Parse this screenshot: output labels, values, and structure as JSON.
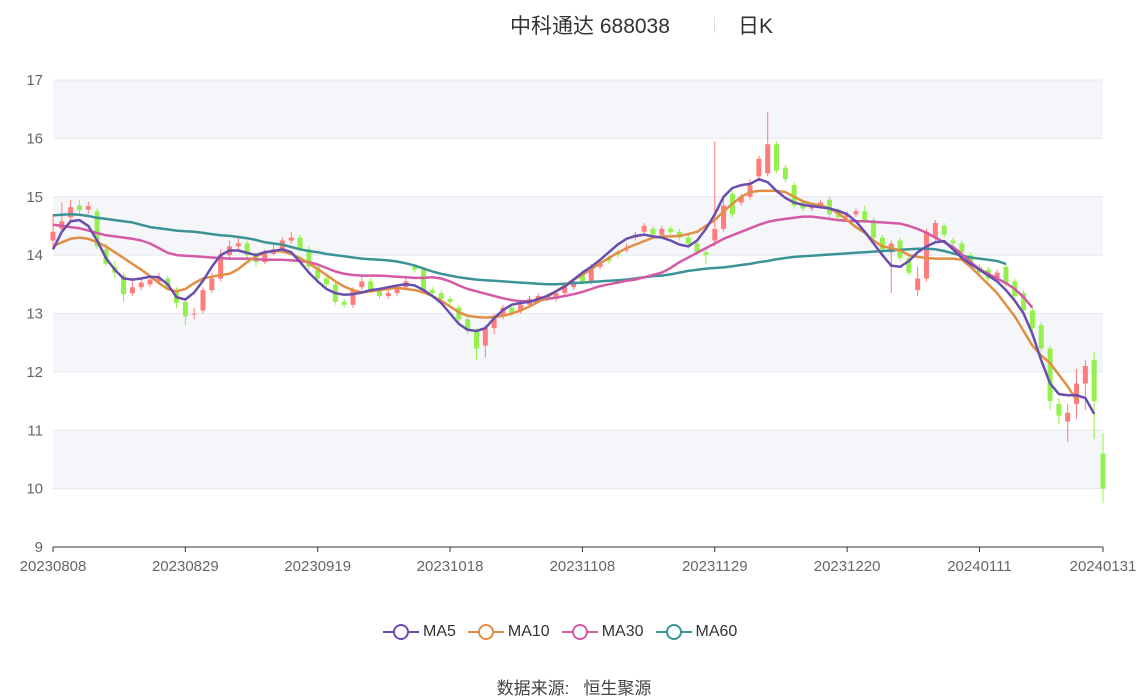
{
  "title": {
    "main": "中科通达 688038",
    "period": "日K"
  },
  "source": {
    "label": "数据来源:",
    "value": "恒生聚源"
  },
  "colors": {
    "up": "#ff7c7c",
    "down": "#94f04c",
    "grid": "#e3e8f0",
    "band": "#f5f6fa",
    "axis": "#333333",
    "ma5": "#6a4eae",
    "ma10": "#e08f45",
    "ma30": "#d55aa6",
    "ma60": "#3b9396"
  },
  "chart_data": {
    "type": "candlestick",
    "ylim": [
      9,
      17
    ],
    "yticks": [
      9,
      10,
      11,
      12,
      13,
      14,
      15,
      16,
      17
    ],
    "x_tick_labels": [
      "20230808",
      "20230829",
      "20230919",
      "20231018",
      "20231108",
      "20231129",
      "20231220",
      "20240111",
      "20240131"
    ],
    "x_tick_indices": [
      0,
      15,
      30,
      45,
      60,
      75,
      90,
      105,
      119
    ],
    "legend": [
      {
        "name": "MA5",
        "color": "#6a4eae"
      },
      {
        "name": "MA10",
        "color": "#e08f45"
      },
      {
        "name": "MA30",
        "color": "#d55aa6"
      },
      {
        "name": "MA60",
        "color": "#3b9396"
      }
    ],
    "close": [
      14.4,
      14.58,
      14.82,
      14.77,
      14.84,
      14.15,
      13.85,
      13.7,
      13.33,
      13.45,
      13.53,
      13.58,
      13.6,
      13.45,
      13.18,
      12.95,
      13.0,
      13.4,
      13.6,
      14.0,
      14.15,
      14.2,
      14.0,
      13.88,
      14.02,
      14.1,
      14.25,
      14.3,
      14.1,
      13.8,
      13.6,
      13.5,
      13.2,
      13.15,
      13.4,
      13.55,
      13.4,
      13.3,
      13.35,
      13.45,
      13.55,
      13.75,
      13.4,
      13.35,
      13.25,
      13.2,
      12.9,
      12.7,
      12.4,
      12.75,
      12.95,
      13.1,
      13.0,
      13.15,
      13.25,
      13.3,
      13.25,
      13.35,
      13.45,
      13.55,
      13.55,
      13.8,
      13.85,
      13.9,
      14.0,
      14.1,
      14.35,
      14.5,
      14.35,
      14.45,
      14.4,
      14.3,
      14.2,
      14.05,
      14.0,
      14.45,
      14.85,
      14.7,
      15.0,
      15.2,
      15.65,
      15.9,
      15.45,
      15.3,
      14.85,
      14.8,
      14.85,
      14.9,
      14.7,
      14.65,
      14.7,
      14.75,
      14.6,
      14.3,
      14.1,
      14.2,
      13.95,
      13.7,
      13.6,
      14.4,
      14.55,
      14.35,
      14.2,
      14.05,
      13.85,
      13.7,
      13.6,
      13.7,
      13.5,
      13.3,
      13.05,
      12.75,
      12.4,
      11.5,
      11.25,
      11.3,
      11.8,
      12.1,
      11.5,
      10.0
    ],
    "open": [
      14.25,
      14.45,
      14.65,
      14.85,
      14.78,
      14.75,
      14.1,
      13.8,
      13.65,
      13.35,
      13.45,
      13.5,
      13.55,
      13.6,
      13.4,
      13.2,
      13.0,
      13.05,
      13.4,
      13.6,
      14.0,
      14.15,
      14.2,
      14.0,
      13.88,
      14.02,
      14.1,
      14.25,
      14.3,
      14.1,
      13.8,
      13.6,
      13.5,
      13.2,
      13.15,
      13.45,
      13.55,
      13.4,
      13.3,
      13.35,
      13.45,
      13.8,
      13.75,
      13.4,
      13.35,
      13.25,
      13.1,
      12.9,
      12.7,
      12.45,
      12.75,
      12.95,
      13.1,
      13.05,
      13.15,
      13.25,
      13.3,
      13.25,
      13.35,
      13.45,
      13.65,
      13.55,
      13.8,
      13.95,
      14.05,
      14.1,
      14.3,
      14.4,
      14.45,
      14.35,
      14.45,
      14.4,
      14.3,
      14.2,
      14.05,
      14.25,
      14.45,
      15.05,
      14.9,
      15.0,
      15.35,
      15.4,
      15.9,
      15.5,
      15.2,
      14.9,
      14.8,
      14.85,
      14.95,
      14.75,
      14.65,
      14.7,
      14.75,
      14.6,
      14.3,
      14.05,
      14.25,
      13.95,
      13.4,
      13.6,
      14.3,
      14.5,
      14.25,
      14.2,
      14.0,
      13.8,
      13.75,
      13.6,
      13.8,
      13.55,
      13.35,
      13.05,
      12.8,
      12.4,
      11.45,
      11.15,
      11.45,
      11.8,
      12.2,
      10.6
    ],
    "high": [
      14.7,
      14.9,
      14.95,
      14.95,
      14.92,
      14.8,
      14.2,
      13.9,
      13.7,
      13.55,
      13.6,
      13.65,
      13.7,
      13.65,
      13.45,
      13.25,
      13.1,
      13.45,
      13.7,
      14.1,
      14.25,
      14.3,
      14.25,
      14.05,
      14.1,
      14.2,
      14.3,
      14.4,
      14.35,
      14.15,
      13.85,
      13.65,
      13.55,
      13.25,
      13.45,
      13.65,
      13.6,
      13.45,
      13.4,
      13.5,
      13.6,
      13.85,
      13.8,
      13.45,
      13.4,
      13.3,
      13.15,
      12.95,
      12.75,
      12.8,
      13.0,
      13.15,
      13.15,
      13.2,
      13.3,
      13.35,
      13.35,
      13.4,
      13.5,
      13.6,
      13.7,
      13.85,
      13.9,
      14.0,
      14.1,
      14.2,
      14.4,
      14.55,
      14.5,
      14.5,
      14.5,
      14.45,
      14.35,
      14.25,
      14.1,
      15.95,
      15.0,
      15.1,
      15.05,
      15.3,
      15.7,
      16.45,
      15.95,
      15.55,
      15.25,
      14.95,
      14.9,
      14.95,
      15.0,
      14.8,
      14.75,
      14.8,
      14.85,
      14.65,
      14.35,
      14.25,
      14.3,
      14.0,
      13.8,
      14.45,
      14.6,
      14.55,
      14.3,
      14.25,
      14.05,
      13.85,
      13.8,
      13.75,
      13.85,
      13.6,
      13.4,
      13.1,
      12.85,
      12.45,
      11.55,
      11.45,
      12.05,
      12.2,
      12.35,
      10.95
    ],
    "low": [
      14.15,
      14.35,
      14.55,
      14.7,
      14.7,
      14.1,
      13.8,
      13.6,
      13.2,
      13.3,
      13.4,
      13.45,
      13.5,
      13.4,
      13.1,
      12.8,
      12.9,
      13.0,
      13.35,
      13.55,
      13.95,
      14.1,
      13.95,
      13.8,
      13.85,
      14.0,
      14.05,
      14.2,
      14.05,
      13.75,
      13.55,
      13.45,
      13.15,
      13.1,
      13.1,
      13.4,
      13.35,
      13.25,
      13.25,
      13.3,
      13.4,
      13.7,
      13.35,
      13.3,
      13.2,
      13.15,
      12.85,
      12.65,
      12.2,
      12.25,
      12.65,
      12.9,
      12.95,
      13.0,
      13.1,
      13.2,
      13.2,
      13.2,
      13.3,
      13.4,
      13.5,
      13.5,
      13.75,
      13.85,
      13.95,
      14.05,
      14.25,
      14.35,
      14.3,
      14.3,
      14.35,
      14.25,
      14.15,
      14.0,
      13.85,
      14.15,
      14.4,
      14.65,
      14.85,
      14.95,
      15.3,
      15.35,
      15.4,
      15.25,
      14.8,
      14.75,
      14.75,
      14.8,
      14.65,
      14.6,
      14.6,
      14.65,
      14.55,
      14.25,
      14.0,
      13.35,
      13.9,
      13.65,
      13.3,
      13.55,
      14.25,
      14.3,
      14.15,
      14.0,
      13.8,
      13.65,
      13.55,
      13.55,
      13.45,
      13.25,
      13.0,
      12.7,
      12.35,
      11.35,
      11.1,
      10.8,
      11.2,
      11.35,
      10.85,
      9.75
    ],
    "ma5": [
      14.1,
      14.4,
      14.58,
      14.6,
      14.5,
      14.25,
      13.95,
      13.75,
      13.6,
      13.58,
      13.6,
      13.63,
      13.62,
      13.5,
      13.28,
      13.24,
      13.36,
      13.56,
      13.8,
      14.0,
      14.08,
      14.08,
      14.04,
      14.0,
      14.05,
      14.07,
      14.1,
      14.05,
      13.88,
      13.7,
      13.55,
      13.42,
      13.35,
      13.32,
      13.33,
      13.36,
      13.4,
      13.42,
      13.45,
      13.48,
      13.5,
      13.48,
      13.4,
      13.3,
      13.18,
      13.0,
      12.82,
      12.72,
      12.7,
      12.75,
      12.92,
      13.06,
      13.15,
      13.18,
      13.2,
      13.25,
      13.3,
      13.38,
      13.46,
      13.58,
      13.7,
      13.8,
      13.92,
      14.05,
      14.18,
      14.28,
      14.33,
      14.35,
      14.32,
      14.3,
      14.25,
      14.18,
      14.15,
      14.25,
      14.45,
      14.7,
      15.0,
      15.15,
      15.2,
      15.22,
      15.3,
      15.25,
      15.1,
      14.98,
      14.9,
      14.86,
      14.84,
      14.82,
      14.8,
      14.76,
      14.7,
      14.58,
      14.4,
      14.2,
      14.0,
      13.82,
      13.8,
      13.9,
      14.05,
      14.15,
      14.22,
      14.24,
      14.1,
      13.95,
      13.85,
      13.75,
      13.65,
      13.55,
      13.4,
      13.22,
      13.0,
      12.65,
      12.2,
      11.8,
      11.62,
      11.6,
      11.6,
      11.55,
      11.28
    ],
    "ma10": [
      14.15,
      14.22,
      14.28,
      14.3,
      14.28,
      14.22,
      14.15,
      14.05,
      13.95,
      13.85,
      13.75,
      13.64,
      13.52,
      13.42,
      13.38,
      13.42,
      13.52,
      13.6,
      13.63,
      13.66,
      13.68,
      13.76,
      13.88,
      13.98,
      14.04,
      14.08,
      14.06,
      14.02,
      13.95,
      13.86,
      13.76,
      13.66,
      13.55,
      13.46,
      13.4,
      13.36,
      13.38,
      13.4,
      13.42,
      13.44,
      13.42,
      13.4,
      13.36,
      13.3,
      13.22,
      13.12,
      13.02,
      12.96,
      12.94,
      12.93,
      12.94,
      12.96,
      13.0,
      13.05,
      13.12,
      13.2,
      13.28,
      13.38,
      13.48,
      13.58,
      13.66,
      13.76,
      13.86,
      13.95,
      14.04,
      14.12,
      14.18,
      14.24,
      14.3,
      14.32,
      14.32,
      14.33,
      14.36,
      14.4,
      14.5,
      14.6,
      14.75,
      14.88,
      15.0,
      15.08,
      15.1,
      15.1,
      15.1,
      15.08,
      15.0,
      14.92,
      14.88,
      14.85,
      14.8,
      14.72,
      14.6,
      14.48,
      14.38,
      14.25,
      14.15,
      14.12,
      14.08,
      14.0,
      13.97,
      13.95,
      13.94,
      13.94,
      13.94,
      13.92,
      13.8,
      13.65,
      13.5,
      13.35,
      13.15,
      12.95,
      12.7,
      12.45,
      12.28,
      12.15,
      11.95,
      11.75,
      11.52
    ],
    "ma30": [
      14.52,
      14.5,
      14.48,
      14.46,
      14.42,
      14.38,
      14.34,
      14.32,
      14.3,
      14.28,
      14.25,
      14.2,
      14.12,
      14.04,
      14.0,
      13.99,
      13.98,
      13.97,
      13.96,
      13.95,
      13.94,
      13.94,
      13.94,
      13.93,
      13.92,
      13.92,
      13.92,
      13.91,
      13.9,
      13.88,
      13.84,
      13.78,
      13.72,
      13.68,
      13.66,
      13.65,
      13.65,
      13.65,
      13.64,
      13.63,
      13.62,
      13.61,
      13.61,
      13.62,
      13.6,
      13.55,
      13.48,
      13.42,
      13.38,
      13.34,
      13.3,
      13.26,
      13.23,
      13.21,
      13.21,
      13.22,
      13.25,
      13.27,
      13.3,
      13.33,
      13.37,
      13.42,
      13.47,
      13.5,
      13.53,
      13.56,
      13.58,
      13.62,
      13.66,
      13.7,
      13.78,
      13.88,
      13.96,
      14.04,
      14.12,
      14.2,
      14.28,
      14.34,
      14.4,
      14.46,
      14.52,
      14.57,
      14.6,
      14.62,
      14.64,
      14.66,
      14.66,
      14.64,
      14.62,
      14.6,
      14.59,
      14.58,
      14.58,
      14.57,
      14.56,
      14.55,
      14.54,
      14.5,
      14.45,
      14.38,
      14.3,
      14.22,
      14.14,
      14.02,
      13.88,
      13.76,
      13.68,
      13.6,
      13.52,
      13.42,
      13.28,
      13.1
    ],
    "ma60": [
      14.68,
      14.69,
      14.7,
      14.69,
      14.67,
      14.64,
      14.62,
      14.6,
      14.58,
      14.56,
      14.52,
      14.48,
      14.46,
      14.44,
      14.42,
      14.41,
      14.4,
      14.38,
      14.36,
      14.34,
      14.33,
      14.31,
      14.29,
      14.26,
      14.22,
      14.2,
      14.18,
      14.14,
      14.1,
      14.07,
      14.05,
      14.02,
      14.0,
      13.98,
      13.96,
      13.94,
      13.93,
      13.92,
      13.91,
      13.89,
      13.86,
      13.82,
      13.77,
      13.72,
      13.68,
      13.65,
      13.62,
      13.6,
      13.58,
      13.57,
      13.56,
      13.55,
      13.54,
      13.53,
      13.52,
      13.51,
      13.5,
      13.5,
      13.51,
      13.52,
      13.53,
      13.54,
      13.55,
      13.56,
      13.57,
      13.58,
      13.6,
      13.62,
      13.64,
      13.65,
      13.67,
      13.7,
      13.73,
      13.75,
      13.77,
      13.78,
      13.79,
      13.81,
      13.83,
      13.85,
      13.88,
      13.9,
      13.93,
      13.95,
      13.97,
      13.98,
      13.99,
      14.0,
      14.01,
      14.02,
      14.03,
      14.04,
      14.05,
      14.06,
      14.07,
      14.08,
      14.09,
      14.1,
      14.11,
      14.11,
      14.1,
      14.07,
      14.03,
      13.99,
      13.96,
      13.94,
      13.92,
      13.9,
      13.85
    ]
  }
}
